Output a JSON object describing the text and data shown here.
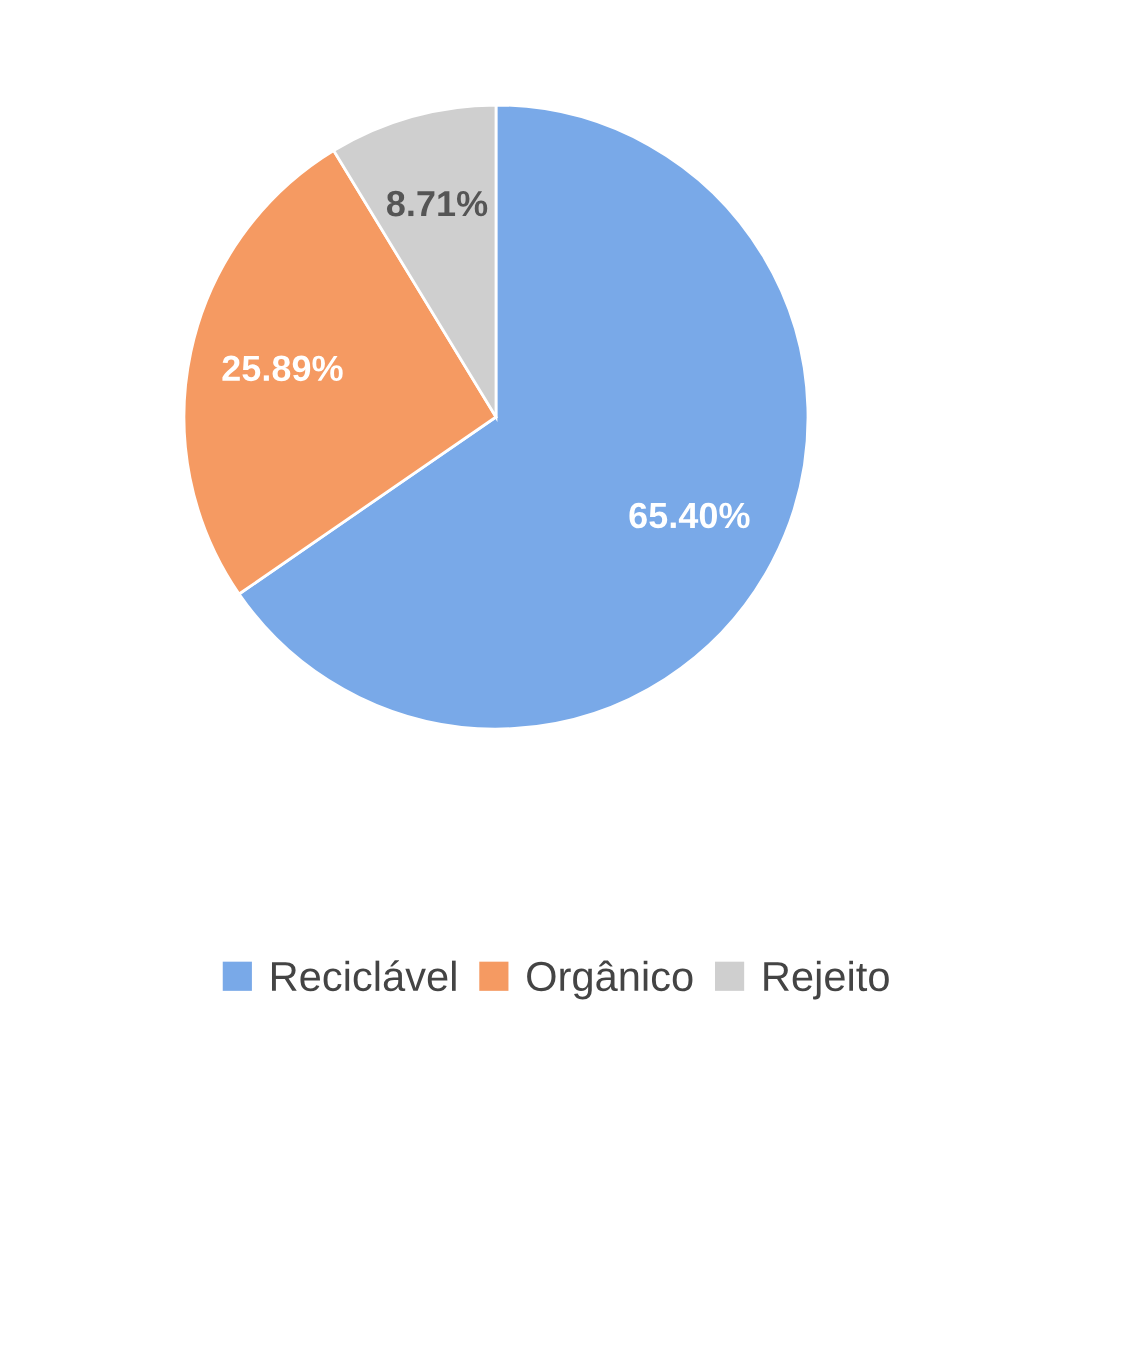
{
  "chart_data": {
    "type": "pie",
    "categories": [
      "Reciclável",
      "Orgânico",
      "Rejeito"
    ],
    "values": [
      65.4,
      25.89,
      8.71
    ],
    "colors": [
      "#79a9e8",
      "#f59a62",
      "#cfcfcf"
    ],
    "value_labels": [
      "65.40%",
      "25.89%",
      "8.71%"
    ],
    "legend": "bottom"
  }
}
